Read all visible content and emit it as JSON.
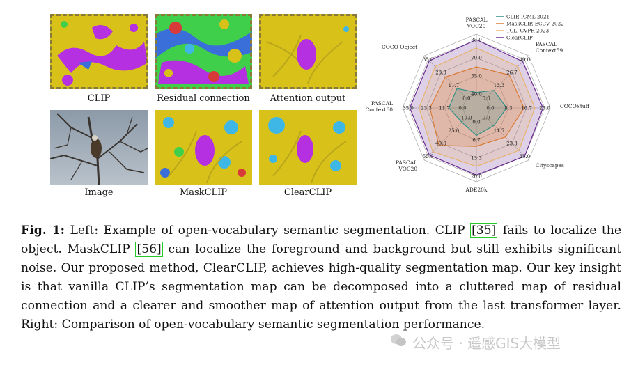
{
  "figure": {
    "thumbnails": [
      {
        "label": "CLIP",
        "style": "dashed"
      },
      {
        "label": "Residual connection",
        "style": "dashed"
      },
      {
        "label": "Attention output",
        "style": "dashed"
      },
      {
        "label": "Image",
        "style": "photo"
      },
      {
        "label": "MaskCLIP",
        "style": "plain"
      },
      {
        "label": "ClearCLIP",
        "style": "plain"
      }
    ],
    "colors": {
      "yellow": "#d8c21a",
      "magenta": "#b430e0",
      "blue": "#3a6ed8",
      "cyan": "#3fb7e6",
      "green": "#3fcf4a",
      "red": "#d83a3a"
    }
  },
  "chart_data": {
    "type": "radar",
    "axes": [
      {
        "label": "PASCAL VOC20",
        "ticks": [
          "40.0",
          "55.0",
          "70.0",
          "85.0"
        ]
      },
      {
        "label": "PASCAL Context59",
        "ticks": [
          "0.0",
          "13.3",
          "26.7",
          "40.0"
        ]
      },
      {
        "label": "COCOStuff",
        "ticks": [
          "0.0",
          "8.3",
          "16.7",
          "25.0"
        ]
      },
      {
        "label": "Cityscapes",
        "ticks": [
          "0.0",
          "11.7",
          "23.3",
          "35.0"
        ]
      },
      {
        "label": "ADE20k",
        "ticks": [
          "0.0",
          "6.7",
          "13.3",
          "20.0"
        ]
      },
      {
        "label": "PASCAL VOC20",
        "ticks": [
          "10.0",
          "25.0",
          "40.0",
          "55.0"
        ]
      },
      {
        "label": "PASCAL Context60",
        "ticks": [
          "0.0",
          "11.7",
          "23.3",
          "35.0"
        ]
      },
      {
        "label": "COCO Object",
        "ticks": [
          "0.0",
          "11.7",
          "23.3",
          "35.0"
        ]
      }
    ],
    "series": [
      {
        "name": "CLIP, ICML 2021",
        "color": "#2f8f86",
        "fraction": [
          0.03,
          0.2,
          0.3,
          0.2,
          0.25,
          0.12,
          0.25,
          0.25
        ]
      },
      {
        "name": "MaskCLIP, ECCV 2022",
        "color": "#d97b35",
        "fraction": [
          0.5,
          0.6,
          0.62,
          0.5,
          0.45,
          0.72,
          0.6,
          0.55
        ]
      },
      {
        "name": "TCL, CVPR 2023",
        "color": "#e8b36a",
        "fraction": [
          0.85,
          0.82,
          0.82,
          0.85,
          0.82,
          0.88,
          0.8,
          0.82
        ]
      },
      {
        "name": "ClearCLIP",
        "color": "#6a2c91",
        "fraction": [
          1.0,
          0.95,
          0.97,
          1.0,
          0.98,
          0.97,
          0.97,
          0.97
        ]
      }
    ]
  },
  "caption": {
    "fig_label": "Fig. 1:",
    "part1": " Left: Example of open-vocabulary semantic segmentation. CLIP ",
    "ref1": "[35]",
    "part2": " fails to localize the object. MaskCLIP ",
    "ref2": "[56]",
    "part3": " can localize the foreground and background but still exhibits significant noise. Our proposed method, ClearCLIP, achieves high-quality segmentation map. Our key insight is that vanilla CLIP’s segmentation map can be decomposed into a cluttered map of residual connection and a clearer and smoother map of attention output from the last transformer layer. Right: Comparison of open-vocabulary semantic segmentation performance."
  },
  "watermark": {
    "text": "公众号 · 遥感GIS大模型"
  }
}
